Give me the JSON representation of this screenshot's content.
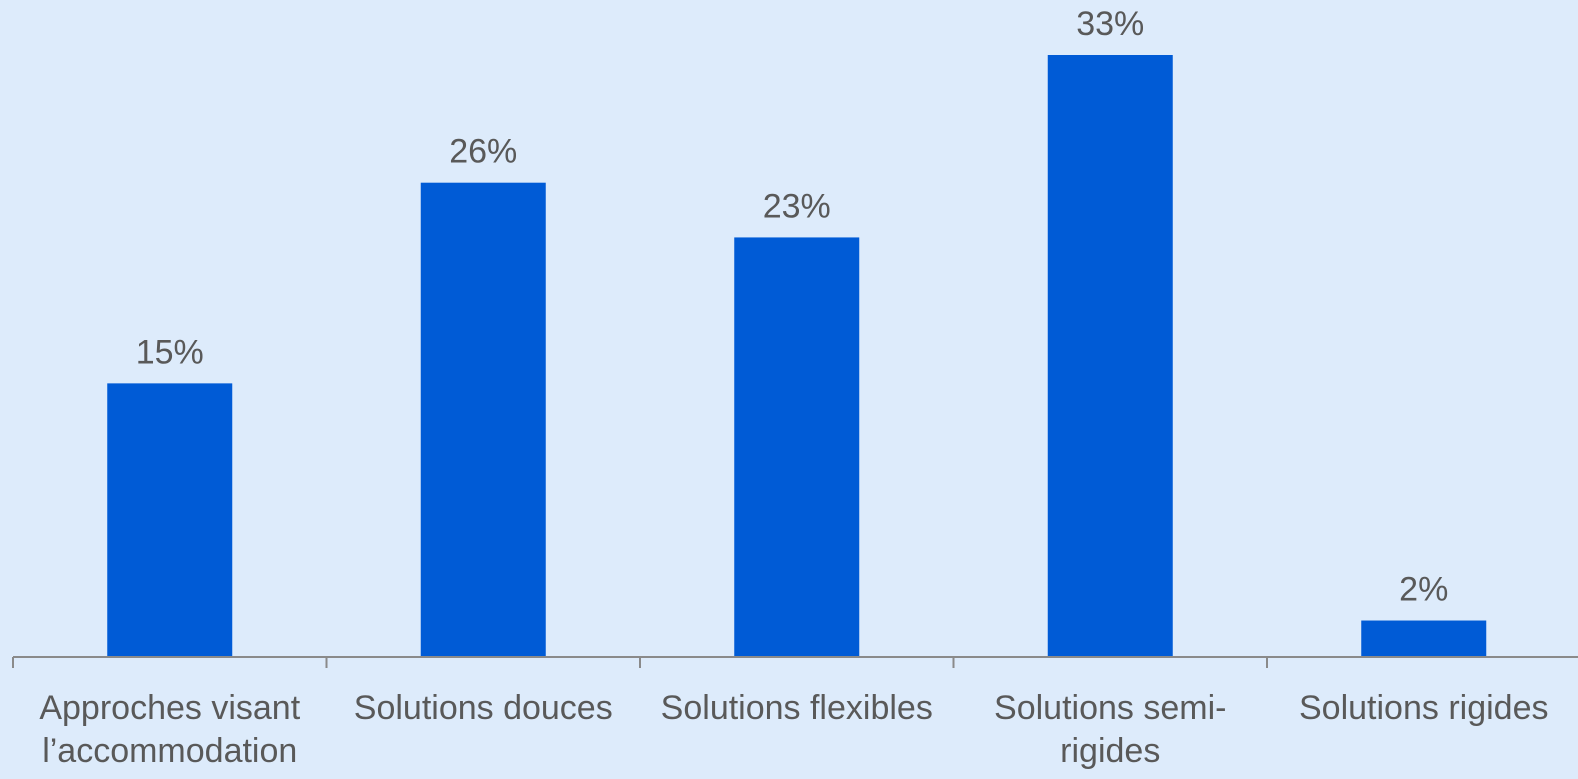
{
  "chart_data": {
    "type": "bar",
    "categories": [
      [
        "Approches visant",
        "l’accommodation"
      ],
      [
        "Solutions douces"
      ],
      [
        "Solutions flexibles"
      ],
      [
        "Solutions semi-",
        "rigides"
      ],
      [
        "Solutions rigides"
      ]
    ],
    "values": [
      15,
      26,
      23,
      33,
      2
    ],
    "value_labels": [
      "15%",
      "26%",
      "23%",
      "33%",
      "2%"
    ],
    "unit": "%",
    "title": "",
    "xlabel": "",
    "ylabel": "",
    "ylim": [
      0,
      33
    ],
    "grid": false,
    "legend": "none"
  },
  "colors": {
    "background": "#DDEBFB",
    "bar": "#005BD6",
    "axis": "#8A8A8A",
    "text": "#595959"
  }
}
